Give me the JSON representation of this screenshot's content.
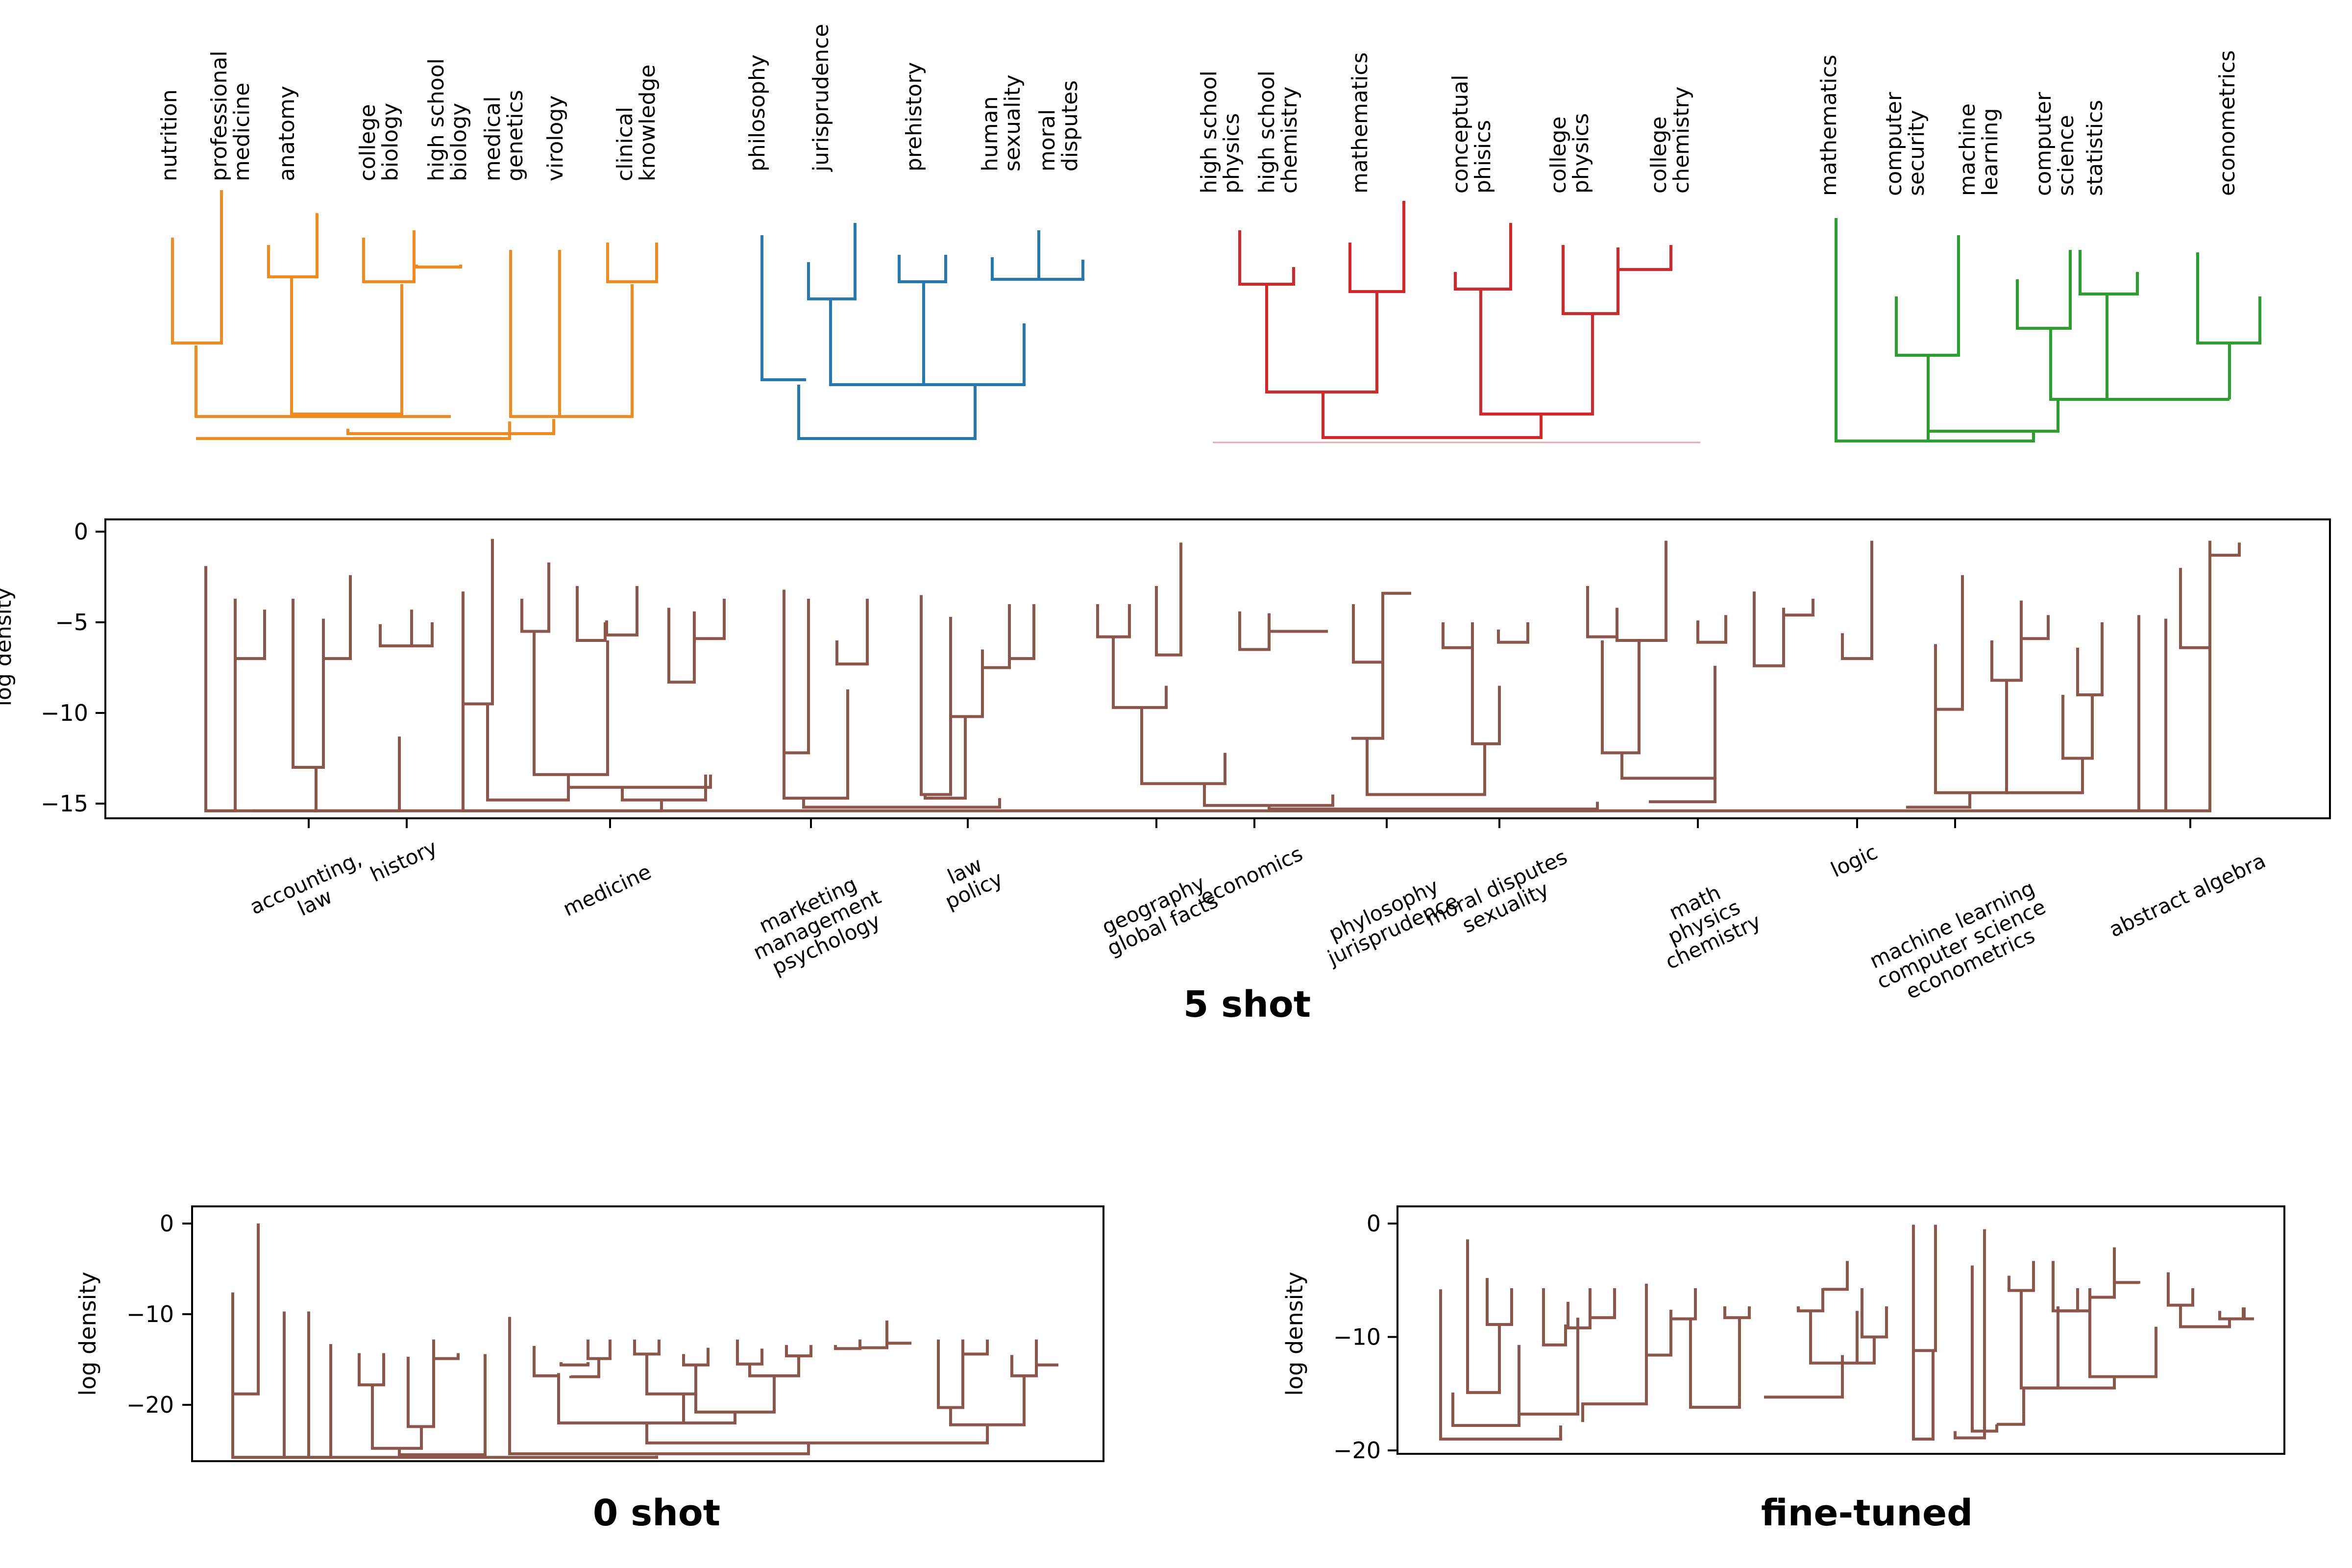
{
  "colors": {
    "medical": "#f28a1e",
    "humanities": "#2678b2",
    "physics": "#d62728",
    "cs": "#2ca02c",
    "brown": "#8c564b",
    "axis": "#000000"
  },
  "top_clusters": [
    {
      "color_key": "medical",
      "leaves": [
        "nutrition",
        "professional\nmedicine",
        "anatomy",
        "college\nbiology",
        "high school\nbiology",
        "medical\ngenetics",
        "virology",
        "clinical\nknowledge"
      ]
    },
    {
      "color_key": "humanities",
      "leaves": [
        "philosophy",
        "jurisprudence",
        "prehistory",
        "human\nsexuality",
        "moral\ndisputes"
      ]
    },
    {
      "color_key": "physics",
      "leaves": [
        "high school\nphysics",
        "high school\nchemistry",
        "mathematics",
        "conceptual\nphisics",
        "college\nphysics",
        "college\nchemistry"
      ]
    },
    {
      "color_key": "cs",
      "leaves": [
        "mathematics",
        "computer\nsecurity",
        "machine\nlearning",
        "computer\nscience",
        "statistics",
        "econometrics"
      ]
    }
  ],
  "panels": {
    "five_shot": {
      "title": "5 shot",
      "ylabel": "log density",
      "yticks": [
        "0",
        "−5",
        "−10",
        "−15"
      ],
      "group_labels": [
        "accounting,\nlaw",
        "history",
        "medicine",
        "marketing\nmanagement\npsychology",
        "law\npolicy",
        "geography\nglobal facts",
        "economics",
        "phylosophy\njurisprudence",
        "moral disputes\nsexuality",
        "math\nphysics\nchemistry",
        "logic",
        "machine learning\ncomputer science\neconometrics",
        "abstract algebra"
      ]
    },
    "zero_shot": {
      "title": "0 shot",
      "ylabel": "log density",
      "yticks": [
        "0",
        "−10",
        "−20"
      ]
    },
    "fine_tuned": {
      "title": "fine-tuned",
      "ylabel": "log density",
      "yticks": [
        "0",
        "−10",
        "−20"
      ]
    }
  }
}
